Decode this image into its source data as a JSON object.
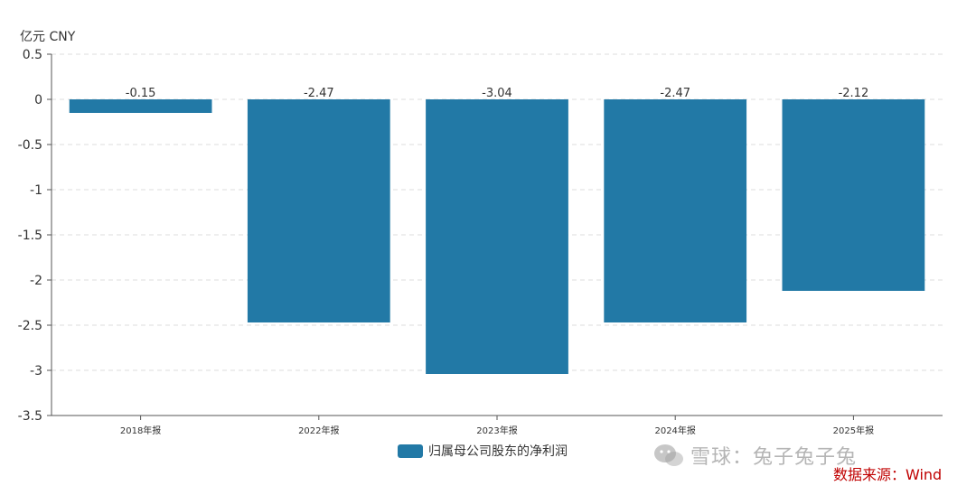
{
  "chart_data": {
    "type": "bar",
    "unit_label": "亿元  CNY",
    "categories": [
      "2018年报",
      "2022年报",
      "2023年报",
      "2024年报",
      "2025年报"
    ],
    "series": [
      {
        "name": "归属母公司股东的净利润",
        "values": [
          -0.15,
          -2.47,
          -3.04,
          -2.47,
          -2.12
        ],
        "color": "#2279a6"
      }
    ],
    "data_labels": [
      "-0.15",
      "-2.47",
      "-3.04",
      "-2.47",
      "-2.12"
    ],
    "y_ticks": [
      0.5,
      0,
      -0.5,
      -1,
      -1.5,
      -2,
      -2.5,
      -3,
      -3.5
    ],
    "y_tick_labels": [
      "0.5",
      "0",
      "-0.5",
      "-1",
      "-1.5",
      "-2",
      "-2.5",
      "-3",
      "-3.5"
    ],
    "ylim": [
      -3.5,
      0.5
    ],
    "grid": "horizontal-dashed",
    "legend_position": "bottom-center"
  },
  "watermark_text": "雪球：兔子兔子兔",
  "source_text": "数据来源：Wind",
  "icons": {
    "watermark_icon": "wechat-icon"
  }
}
